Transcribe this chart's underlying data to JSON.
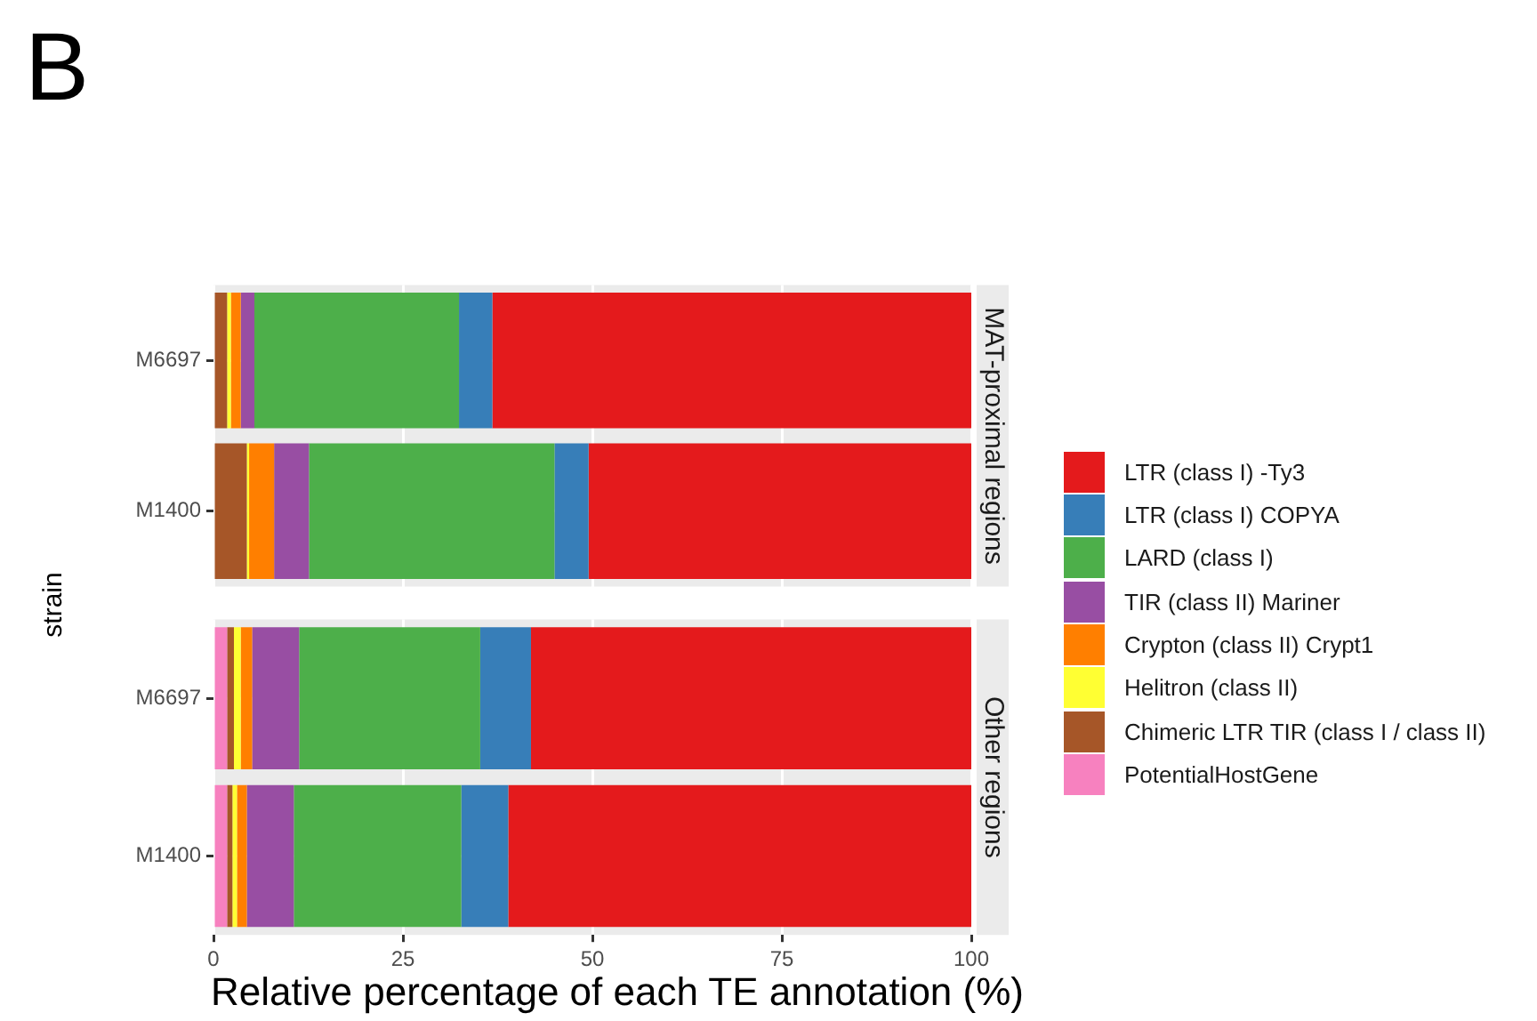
{
  "chart_data": [
    {
      "type": "bar",
      "title": "MAT-proximal regions",
      "ylabel": "strain",
      "orientation": "horizontal",
      "stacked": true,
      "categories": [
        "M6697",
        "M1400"
      ],
      "xlim": [
        0,
        100
      ],
      "xticks": [
        0,
        25,
        50,
        75,
        100
      ],
      "grid": true,
      "legend": "right",
      "tick_labels": "y",
      "annotations": [
        "B"
      ],
      "series": [
        {
          "name": "PotentialHostGene",
          "color": "#f781bf",
          "values": [
            0,
            0
          ]
        },
        {
          "name": "Chimeric LTR TIR (class I / class II)",
          "color": "#a65628",
          "values": [
            1.8,
            4.4
          ]
        },
        {
          "name": "Helitron (class II)",
          "color": "#ffff33",
          "values": [
            0.5,
            0.3
          ]
        },
        {
          "name": "Crypton (class II) Crypt1",
          "color": "#ff7f00",
          "values": [
            1.3,
            3.3
          ]
        },
        {
          "name": "TIR (class II) Mariner",
          "color": "#984ea3",
          "values": [
            1.8,
            4.6
          ]
        },
        {
          "name": "LARD (class I)",
          "color": "#4daf4a",
          "values": [
            27.0,
            32.4
          ]
        },
        {
          "name": "LTR (class I) COPYA",
          "color": "#377eb8",
          "values": [
            4.4,
            4.5
          ]
        },
        {
          "name": "LTR (class I) -Ty3",
          "color": "#e41a1c",
          "values": [
            63.2,
            50.5
          ]
        }
      ]
    },
    {
      "type": "bar",
      "title": "Other regions",
      "xlabel": "Relative percentage of each TE annotation (%)",
      "orientation": "horizontal",
      "stacked": true,
      "categories": [
        "M6697",
        "M1400"
      ],
      "xlim": [
        0,
        100
      ],
      "xticks": [
        0,
        25,
        50,
        75,
        100
      ],
      "grid": true,
      "series": [
        {
          "color": "#f781bf",
          "values": [
            1.8,
            1.8
          ]
        },
        {
          "color": "#a65628",
          "values": [
            0.9,
            0.7
          ]
        },
        {
          "color": "#ffff33",
          "values": [
            0.9,
            0.6
          ]
        },
        {
          "color": "#ff7f00",
          "values": [
            1.5,
            1.3
          ]
        },
        {
          "color": "#984ea3",
          "values": [
            6.2,
            6.2
          ]
        },
        {
          "color": "#4daf4a",
          "values": [
            23.9,
            22.1
          ]
        },
        {
          "color": "#377eb8",
          "values": [
            6.7,
            6.2
          ]
        },
        {
          "color": "#e41a1c",
          "values": [
            58.1,
            61.1
          ]
        }
      ]
    }
  ]
}
